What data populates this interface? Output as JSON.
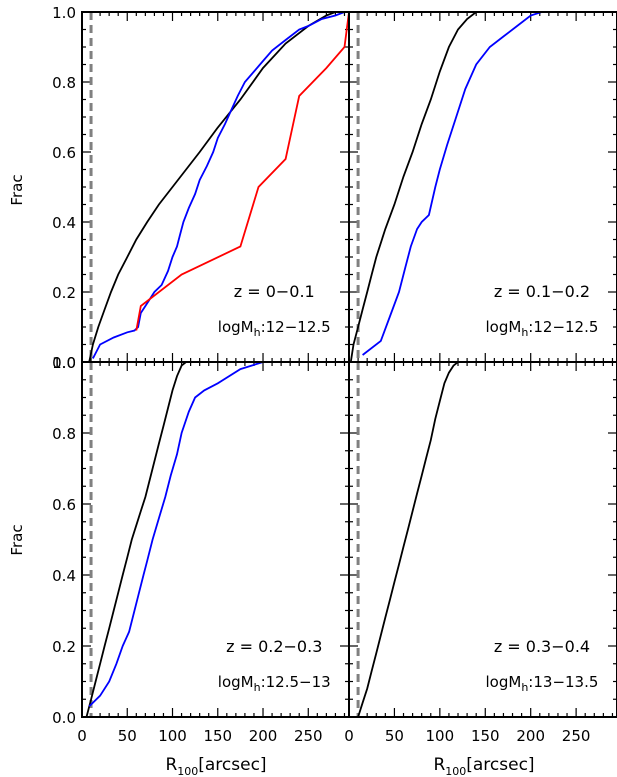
{
  "figure": {
    "ylabel": "Frac",
    "xlabel_main": "R",
    "xlabel_sub": "100",
    "xlabel_unit": "[arcsec]",
    "xticks": [
      "0",
      "50",
      "100",
      "150",
      "200",
      "250"
    ],
    "yticks": [
      "0.0",
      "0.2",
      "0.4",
      "0.6",
      "0.8",
      "1.0"
    ]
  },
  "colors": {
    "black": "#000000",
    "blue": "#0000ff",
    "red": "#ff0000",
    "dashed": "#808080"
  },
  "chart_data": [
    {
      "type": "line",
      "panel": "top-left",
      "annotation_z": "z = 0−0.1",
      "annotation_m_prefix": "logM",
      "annotation_m_sub": "h",
      "annotation_m_range": ":12−12.5",
      "xlim": [
        0,
        295
      ],
      "ylim": [
        0,
        1.0
      ],
      "vline_x": 10,
      "series": [
        {
          "color": "black",
          "x": [
            8,
            12,
            18,
            25,
            32,
            40,
            50,
            60,
            72,
            85,
            100,
            115,
            130,
            150,
            175,
            200,
            225,
            250,
            270,
            280,
            285
          ],
          "y": [
            0.0,
            0.05,
            0.1,
            0.15,
            0.2,
            0.25,
            0.3,
            0.35,
            0.4,
            0.45,
            0.5,
            0.55,
            0.6,
            0.67,
            0.75,
            0.84,
            0.91,
            0.96,
            0.99,
            1.0,
            1.0
          ]
        },
        {
          "color": "blue",
          "x": [
            12,
            20,
            35,
            50,
            58,
            62,
            65,
            70,
            75,
            80,
            88,
            95,
            100,
            105,
            108,
            112,
            118,
            125,
            130,
            138,
            145,
            150,
            158,
            165,
            172,
            180,
            190,
            200,
            210,
            225,
            240,
            250,
            265,
            280,
            290
          ],
          "y": [
            0.01,
            0.05,
            0.07,
            0.085,
            0.09,
            0.1,
            0.14,
            0.16,
            0.18,
            0.2,
            0.22,
            0.26,
            0.3,
            0.33,
            0.36,
            0.4,
            0.44,
            0.48,
            0.52,
            0.56,
            0.6,
            0.64,
            0.68,
            0.72,
            0.76,
            0.8,
            0.83,
            0.86,
            0.89,
            0.92,
            0.95,
            0.96,
            0.98,
            0.99,
            1.0
          ]
        },
        {
          "color": "red",
          "x": [
            60,
            65,
            110,
            175,
            195,
            225,
            240,
            270,
            290,
            295
          ],
          "y": [
            0.09,
            0.16,
            0.25,
            0.33,
            0.5,
            0.58,
            0.76,
            0.84,
            0.9,
            1.0
          ]
        }
      ]
    },
    {
      "type": "line",
      "panel": "top-right",
      "annotation_z": "z = 0.1−0.2",
      "annotation_m_prefix": "logM",
      "annotation_m_sub": "h",
      "annotation_m_range": ":12−12.5",
      "xlim": [
        0,
        295
      ],
      "ylim": [
        0,
        1.0
      ],
      "vline_x": 10,
      "series": [
        {
          "color": "black",
          "x": [
            2,
            5,
            10,
            15,
            20,
            25,
            30,
            40,
            50,
            60,
            70,
            80,
            90,
            100,
            110,
            120,
            130,
            140,
            148
          ],
          "y": [
            0.0,
            0.05,
            0.1,
            0.15,
            0.2,
            0.25,
            0.3,
            0.38,
            0.45,
            0.53,
            0.6,
            0.68,
            0.75,
            0.83,
            0.9,
            0.95,
            0.98,
            1.0,
            1.0
          ]
        },
        {
          "color": "blue",
          "x": [
            15,
            35,
            45,
            55,
            62,
            68,
            75,
            80,
            88,
            95,
            100,
            108,
            118,
            128,
            140,
            155,
            170,
            185,
            200,
            212
          ],
          "y": [
            0.02,
            0.06,
            0.13,
            0.2,
            0.27,
            0.33,
            0.38,
            0.4,
            0.42,
            0.5,
            0.55,
            0.62,
            0.7,
            0.78,
            0.85,
            0.9,
            0.93,
            0.96,
            0.99,
            1.0
          ]
        }
      ]
    },
    {
      "type": "line",
      "panel": "bottom-left",
      "annotation_z": "z = 0.2−0.3",
      "annotation_m_prefix": "logM",
      "annotation_m_sub": "h",
      "annotation_m_range": ":12.5−13",
      "xlim": [
        0,
        295
      ],
      "ylim": [
        0,
        1.0
      ],
      "vline_x": 10,
      "series": [
        {
          "color": "black",
          "x": [
            5,
            10,
            15,
            20,
            25,
            30,
            35,
            40,
            45,
            50,
            55,
            60,
            65,
            70,
            75,
            80,
            85,
            90,
            95,
            100,
            105,
            110,
            115,
            120,
            128
          ],
          "y": [
            0.0,
            0.05,
            0.1,
            0.15,
            0.2,
            0.25,
            0.3,
            0.35,
            0.4,
            0.45,
            0.5,
            0.54,
            0.58,
            0.62,
            0.67,
            0.72,
            0.77,
            0.82,
            0.87,
            0.92,
            0.96,
            0.99,
            1.0,
            1.0,
            1.0
          ]
        },
        {
          "color": "blue",
          "x": [
            8,
            20,
            30,
            38,
            45,
            52,
            58,
            62,
            68,
            72,
            78,
            85,
            92,
            98,
            105,
            110,
            118,
            125,
            135,
            150,
            175,
            200
          ],
          "y": [
            0.03,
            0.06,
            0.1,
            0.15,
            0.2,
            0.24,
            0.3,
            0.34,
            0.4,
            0.44,
            0.5,
            0.56,
            0.62,
            0.68,
            0.74,
            0.8,
            0.86,
            0.9,
            0.92,
            0.94,
            0.98,
            1.0
          ]
        }
      ]
    },
    {
      "type": "line",
      "panel": "bottom-right",
      "annotation_z": "z = 0.3−0.4",
      "annotation_m_prefix": "logM",
      "annotation_m_sub": "h",
      "annotation_m_range": ":13−13.5",
      "xlim": [
        0,
        295
      ],
      "ylim": [
        0,
        1.0
      ],
      "vline_x": 10,
      "series": [
        {
          "color": "black",
          "x": [
            10,
            15,
            20,
            25,
            30,
            35,
            40,
            45,
            50,
            55,
            60,
            65,
            70,
            75,
            80,
            85,
            90,
            95,
            100,
            105,
            110,
            115,
            120,
            128
          ],
          "y": [
            0.0,
            0.04,
            0.08,
            0.13,
            0.18,
            0.23,
            0.28,
            0.33,
            0.38,
            0.43,
            0.48,
            0.53,
            0.58,
            0.63,
            0.68,
            0.73,
            0.78,
            0.84,
            0.89,
            0.94,
            0.97,
            0.99,
            1.0,
            1.0
          ]
        }
      ]
    }
  ]
}
